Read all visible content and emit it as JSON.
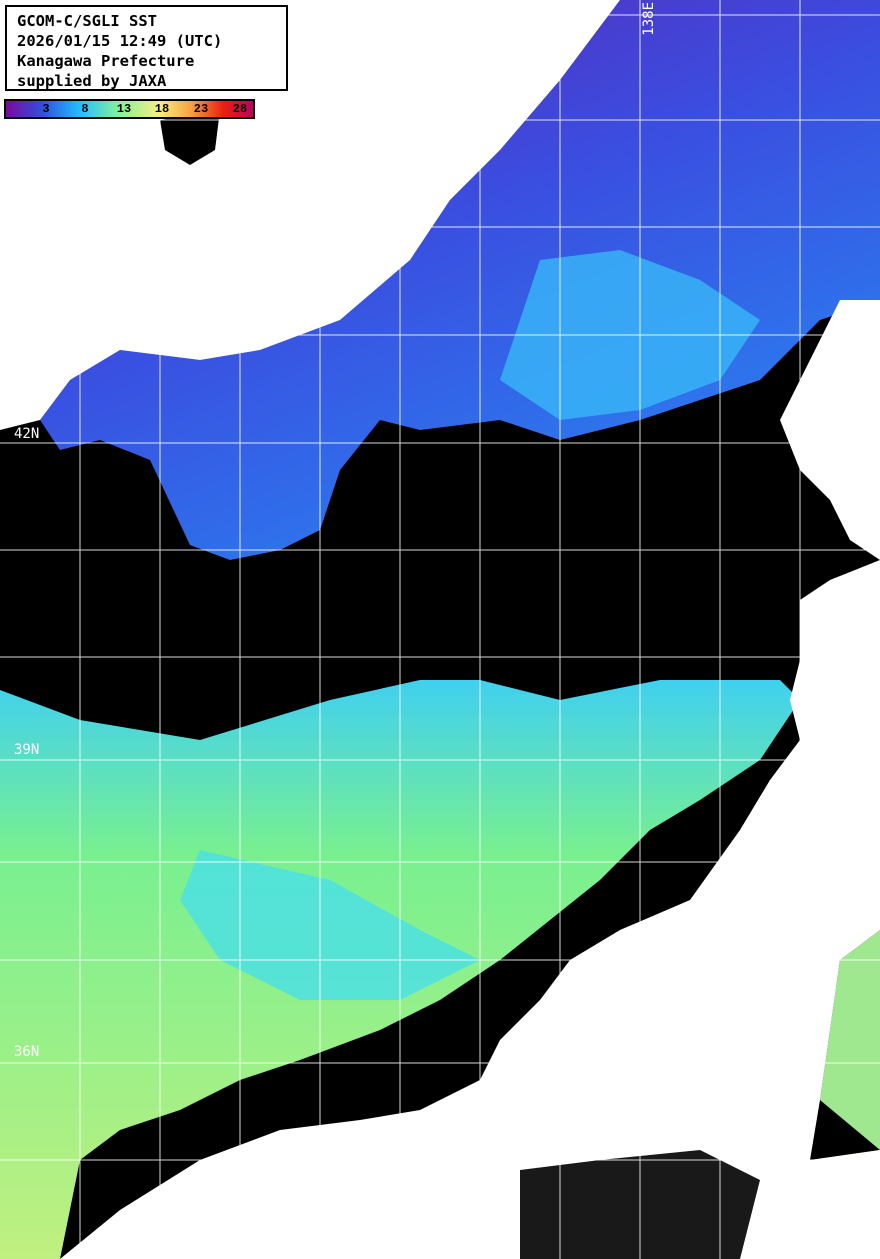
{
  "header": {
    "lines": [
      "GCOM-C/SGLI SST",
      "2026/01/15 12:49 (UTC)",
      "Kanagawa Prefecture",
      "supplied by JAXA"
    ]
  },
  "colorbar": {
    "ticks": [
      "3",
      "8",
      "13",
      "18",
      "23",
      "28"
    ],
    "unit_range": [
      -2,
      31
    ],
    "colors": [
      "#7a0a9a",
      "#3050e0",
      "#20c0ff",
      "#80f0a0",
      "#f8f080",
      "#f8a040",
      "#e82010",
      "#c00060"
    ]
  },
  "grid": {
    "lat_labels": [
      "42N",
      "39N",
      "36N"
    ],
    "lon_labels": [
      "138E"
    ]
  },
  "colors": {
    "land": "#ffffff",
    "no_data": "#000000",
    "grid": "#ffffff"
  }
}
